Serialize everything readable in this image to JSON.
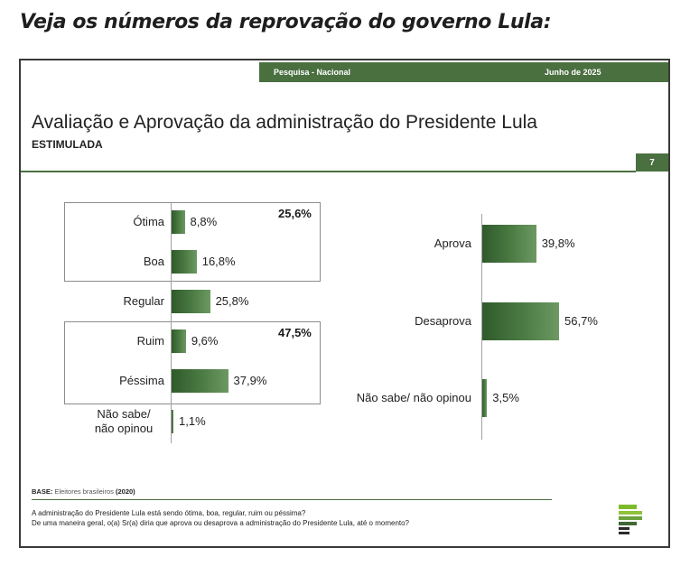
{
  "headline": "Veja os números da reprovação do governo Lula:",
  "slide": {
    "survey_label": "Pesquisa - Nacional",
    "date_label": "Junho de 2025",
    "title": "Avaliação e Aprovação da administração do Presidente Lula",
    "subtitle": "ESTIMULADA",
    "page_number": "7",
    "base_label": "BASE:",
    "base_text": "Eleitores brasileiros",
    "base_year": "(2020)",
    "questions": [
      "A administração do Presidente Lula está sendo ótima, boa, regular, ruim ou péssima?",
      "De uma maneira geral, o(a) Sr(a) diria que aprova ou desaprova a administração do Presidente Lula, até o momento?"
    ],
    "group_totals": {
      "positive": "25,6%",
      "negative": "47,5%"
    }
  },
  "colors": {
    "brand_green": "#4a7040",
    "bar_dark": "#2f5a2a",
    "bar_light": "#6d9963"
  },
  "chart_data": [
    {
      "type": "bar",
      "orientation": "horizontal",
      "categories": [
        "Ótima",
        "Boa",
        "Regular",
        "Ruim",
        "Péssima",
        "Não sabe/ não opinou"
      ],
      "values": [
        8.8,
        16.8,
        25.8,
        9.6,
        37.9,
        1.1
      ],
      "value_labels": [
        "8,8%",
        "16,8%",
        "25,8%",
        "9,6%",
        "37,9%",
        "1,1%"
      ],
      "unit": "%",
      "groups": [
        {
          "categories": [
            "Ótima",
            "Boa"
          ],
          "total": "25,6%"
        },
        {
          "categories": [
            "Ruim",
            "Péssima"
          ],
          "total": "47,5%"
        }
      ]
    },
    {
      "type": "bar",
      "orientation": "horizontal",
      "categories": [
        "Aprova",
        "Desaprova",
        "Não sabe/ não opinou"
      ],
      "values": [
        39.8,
        56.7,
        3.5
      ],
      "value_labels": [
        "39,8%",
        "56,7%",
        "3,5%"
      ],
      "unit": "%"
    }
  ]
}
